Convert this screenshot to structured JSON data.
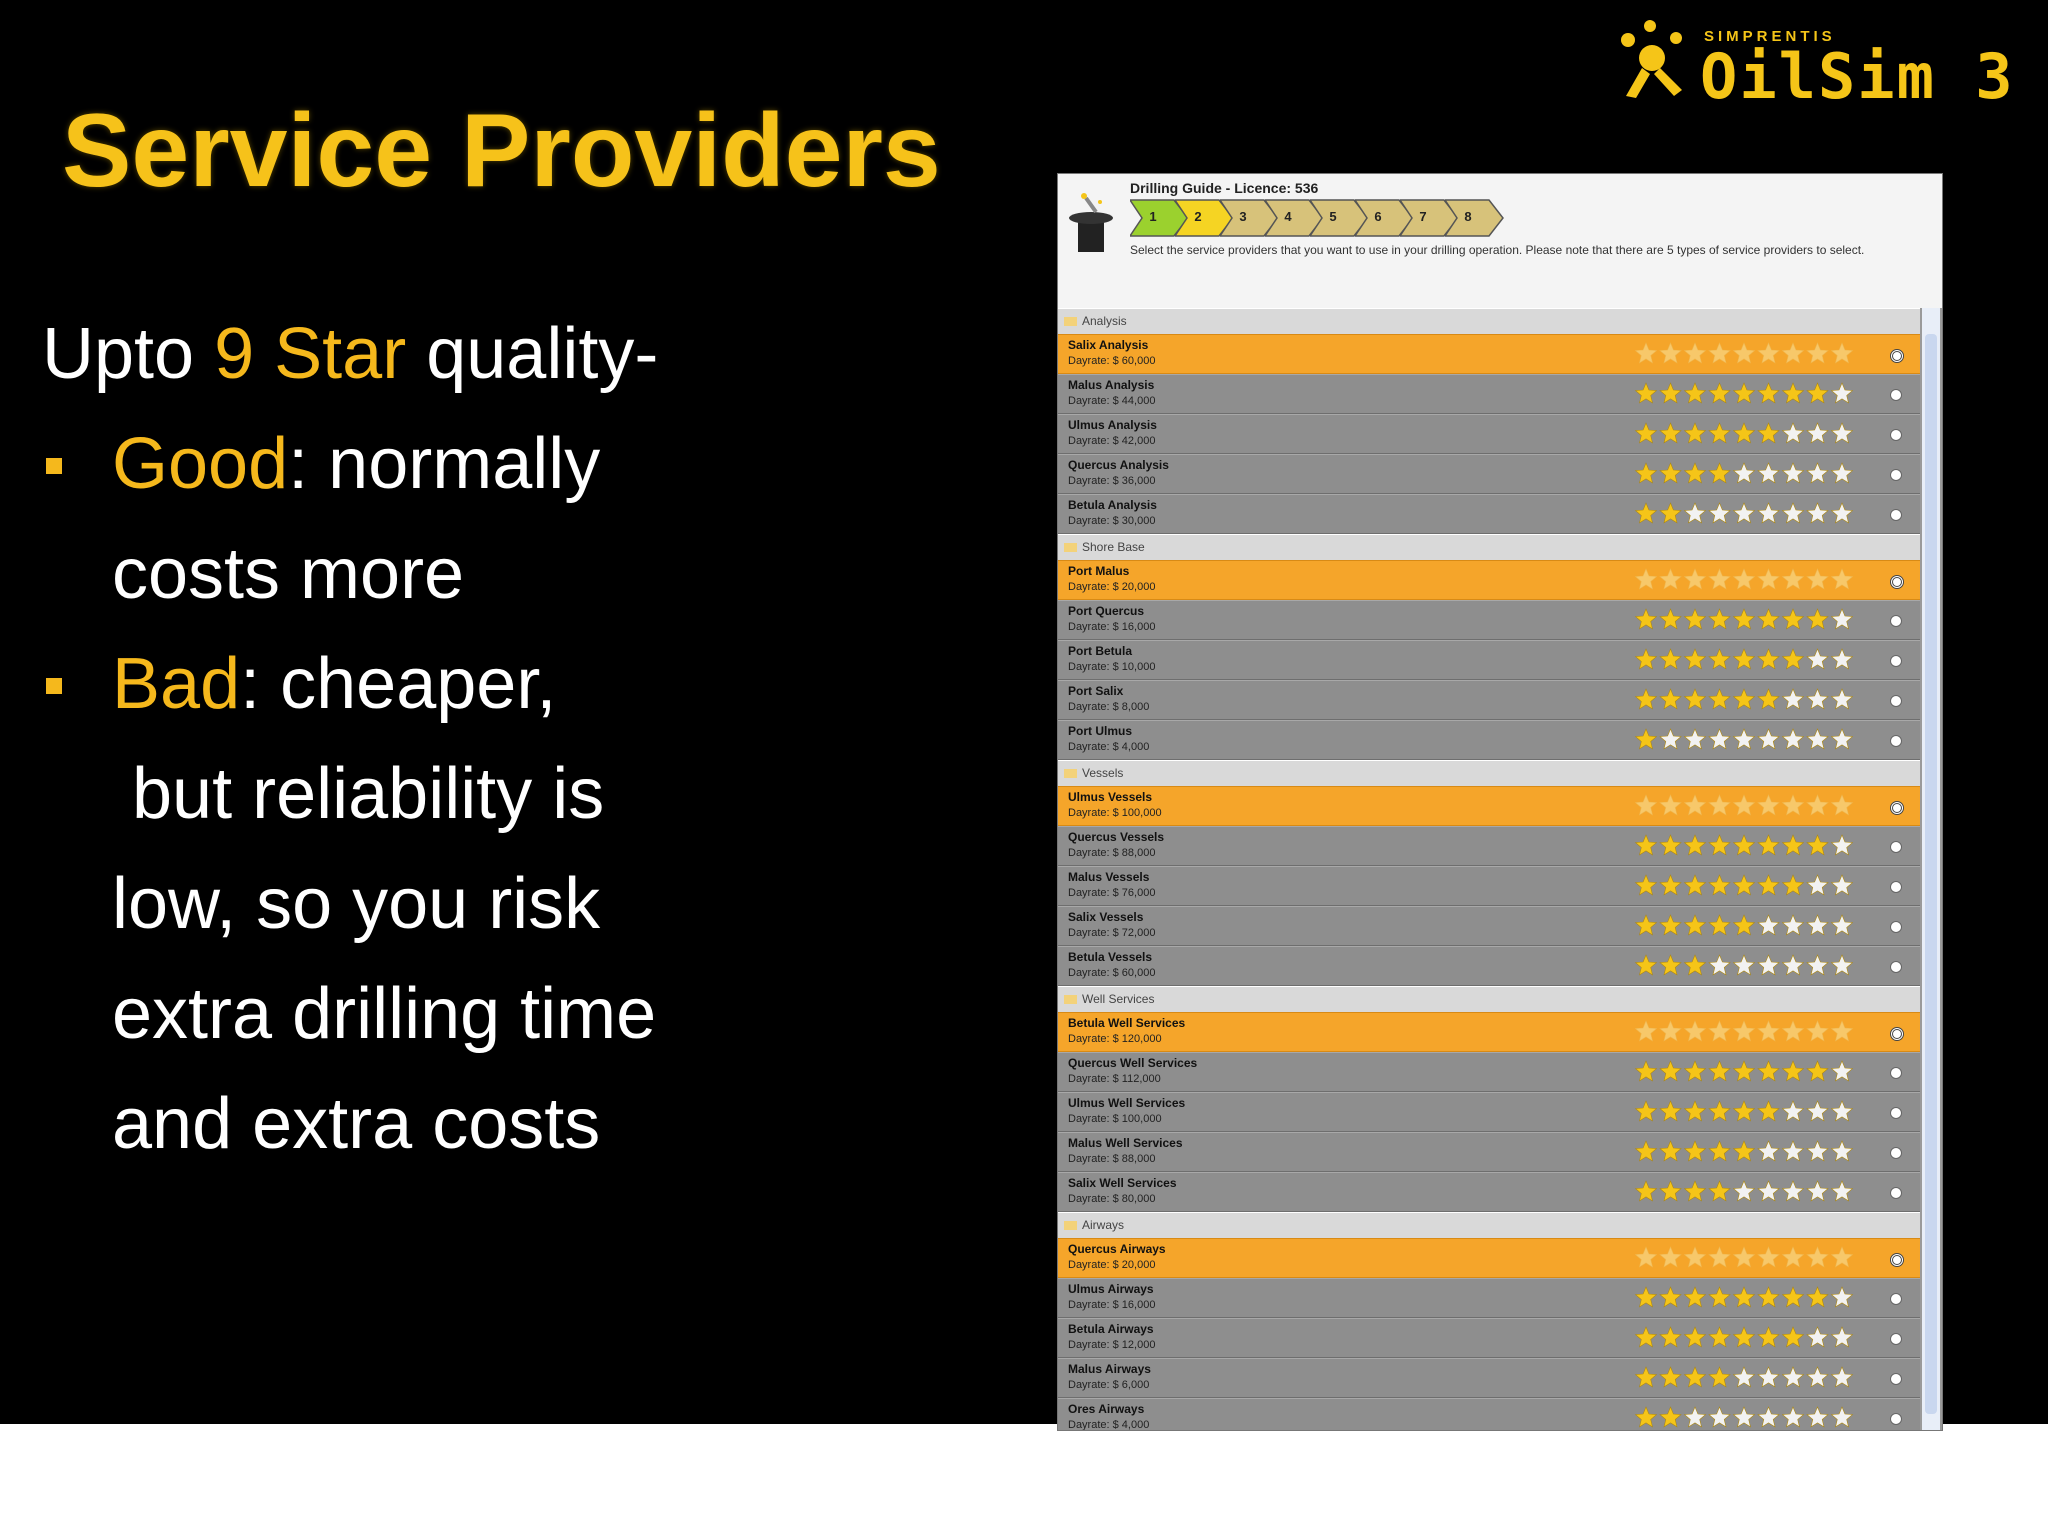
{
  "logo": {
    "brand": "SIMPRENTIS",
    "product": "OilSim 3"
  },
  "title": "Service Providers",
  "body": {
    "intro": {
      "before": "Upto ",
      "highlight": "9 Star",
      "after": " quality-"
    },
    "bullets": [
      {
        "highlight": "Good",
        "text": [
          ": normally",
          "costs more"
        ]
      },
      {
        "highlight": "Bad",
        "text": [
          ": cheaper,",
          " but reliability is",
          "low, so you risk",
          "extra drilling time",
          "and extra costs"
        ]
      }
    ]
  },
  "panel": {
    "heading": "Drilling Guide - Licence: 536",
    "steps": [
      1,
      2,
      3,
      4,
      5,
      6,
      7,
      8
    ],
    "instruction": "Select the service providers that you want to use in your drilling operation. Please note that there are 5 types of service providers to select.",
    "star_slots": 9,
    "sections": [
      {
        "name": "Analysis",
        "providers": [
          {
            "name": "Salix Analysis",
            "dayrate": "Dayrate: $ 60,000",
            "stars": 9,
            "selected": true
          },
          {
            "name": "Malus Analysis",
            "dayrate": "Dayrate: $ 44,000",
            "stars": 8,
            "selected": false
          },
          {
            "name": "Ulmus Analysis",
            "dayrate": "Dayrate: $ 42,000",
            "stars": 6,
            "selected": false
          },
          {
            "name": "Quercus Analysis",
            "dayrate": "Dayrate: $ 36,000",
            "stars": 4,
            "selected": false
          },
          {
            "name": "Betula Analysis",
            "dayrate": "Dayrate: $ 30,000",
            "stars": 2,
            "selected": false
          }
        ]
      },
      {
        "name": "Shore Base",
        "providers": [
          {
            "name": "Port Malus",
            "dayrate": "Dayrate: $ 20,000",
            "stars": 9,
            "selected": true
          },
          {
            "name": "Port Quercus",
            "dayrate": "Dayrate: $ 16,000",
            "stars": 8,
            "selected": false
          },
          {
            "name": "Port Betula",
            "dayrate": "Dayrate: $ 10,000",
            "stars": 7,
            "selected": false
          },
          {
            "name": "Port Salix",
            "dayrate": "Dayrate: $ 8,000",
            "stars": 6,
            "selected": false
          },
          {
            "name": "Port Ulmus",
            "dayrate": "Dayrate: $ 4,000",
            "stars": 1,
            "selected": false
          }
        ]
      },
      {
        "name": "Vessels",
        "providers": [
          {
            "name": "Ulmus Vessels",
            "dayrate": "Dayrate: $ 100,000",
            "stars": 9,
            "selected": true
          },
          {
            "name": "Quercus Vessels",
            "dayrate": "Dayrate: $ 88,000",
            "stars": 8,
            "selected": false
          },
          {
            "name": "Malus Vessels",
            "dayrate": "Dayrate: $ 76,000",
            "stars": 7,
            "selected": false
          },
          {
            "name": "Salix Vessels",
            "dayrate": "Dayrate: $ 72,000",
            "stars": 5,
            "selected": false
          },
          {
            "name": "Betula Vessels",
            "dayrate": "Dayrate: $ 60,000",
            "stars": 3,
            "selected": false
          }
        ]
      },
      {
        "name": "Well Services",
        "providers": [
          {
            "name": "Betula Well Services",
            "dayrate": "Dayrate: $ 120,000",
            "stars": 9,
            "selected": true
          },
          {
            "name": "Quercus Well Services",
            "dayrate": "Dayrate: $ 112,000",
            "stars": 8,
            "selected": false
          },
          {
            "name": "Ulmus Well Services",
            "dayrate": "Dayrate: $ 100,000",
            "stars": 6,
            "selected": false
          },
          {
            "name": "Malus Well Services",
            "dayrate": "Dayrate: $ 88,000",
            "stars": 5,
            "selected": false
          },
          {
            "name": "Salix Well Services",
            "dayrate": "Dayrate: $ 80,000",
            "stars": 4,
            "selected": false
          }
        ]
      },
      {
        "name": "Airways",
        "providers": [
          {
            "name": "Quercus Airways",
            "dayrate": "Dayrate: $ 20,000",
            "stars": 9,
            "selected": true
          },
          {
            "name": "Ulmus Airways",
            "dayrate": "Dayrate: $ 16,000",
            "stars": 8,
            "selected": false
          },
          {
            "name": "Betula Airways",
            "dayrate": "Dayrate: $ 12,000",
            "stars": 7,
            "selected": false
          },
          {
            "name": "Malus Airways",
            "dayrate": "Dayrate: $ 6,000",
            "stars": 4,
            "selected": false
          },
          {
            "name": "Ores Airways",
            "dayrate": "Dayrate: $ 4,000",
            "stars": 2,
            "selected": false
          }
        ]
      }
    ]
  }
}
